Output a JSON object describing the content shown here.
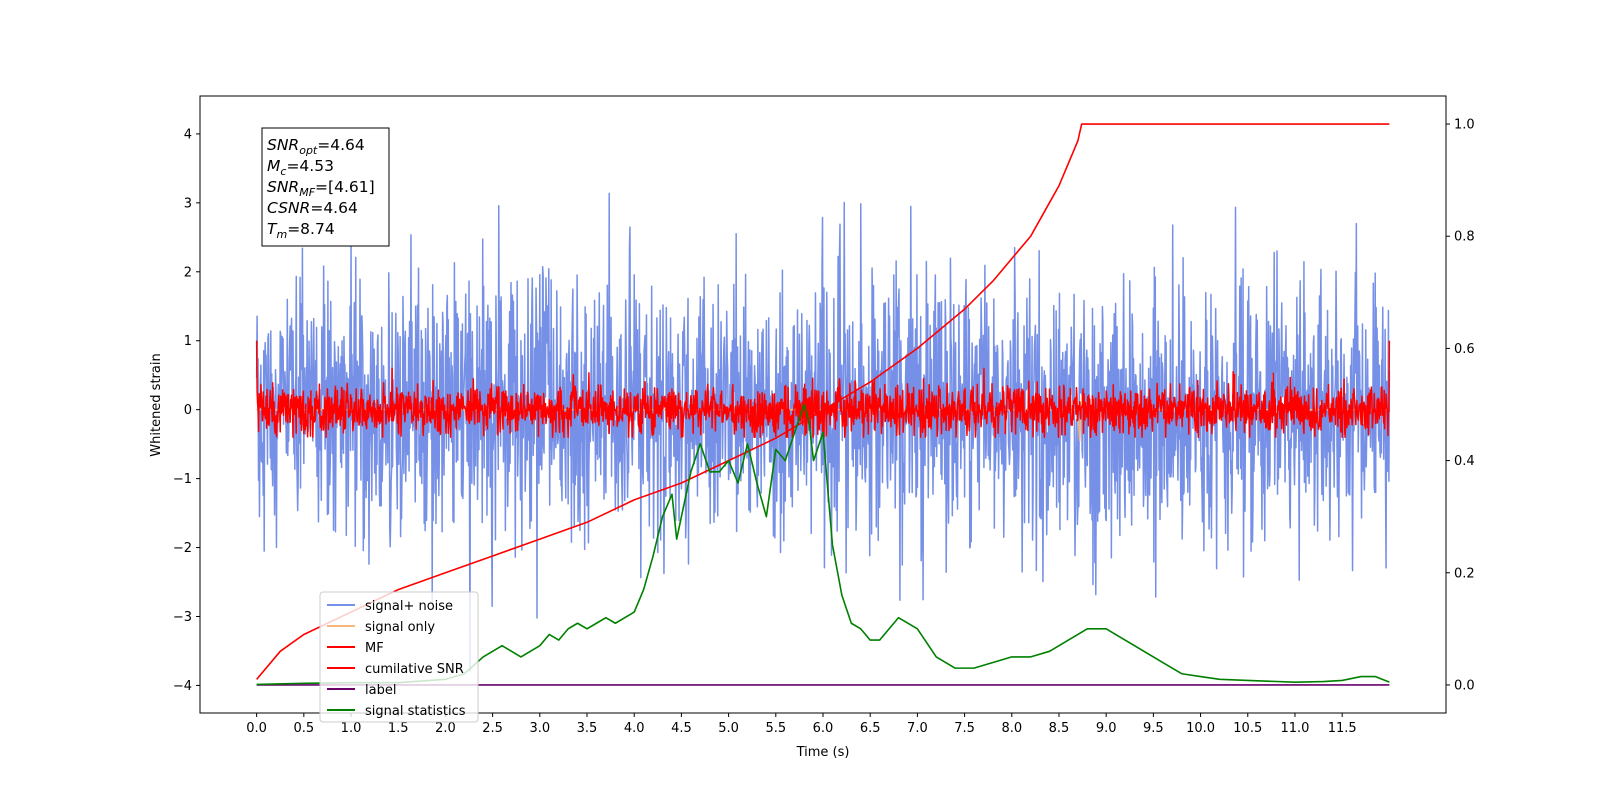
{
  "chart_data": {
    "type": "line",
    "title": "",
    "xlabel": "Time (s)",
    "ylabel": "Whitened strain",
    "y2label": "",
    "xlim": [
      -0.6,
      12.6
    ],
    "ylim": [
      -4.4,
      4.55
    ],
    "y2lim": [
      -0.05,
      1.05
    ],
    "x_ticks": [
      0.0,
      0.5,
      1.0,
      1.5,
      2.0,
      2.5,
      3.0,
      3.5,
      4.0,
      4.5,
      5.0,
      5.5,
      6.0,
      6.5,
      7.0,
      7.5,
      8.0,
      8.5,
      9.0,
      9.5,
      10.0,
      10.5,
      11.0,
      11.5
    ],
    "x_tick_labels": [
      "0.0",
      "0.5",
      "1.0",
      "1.5",
      "2.0",
      "2.5",
      "3.0",
      "3.5",
      "4.0",
      "4.5",
      "5.0",
      "5.5",
      "6.0",
      "6.5",
      "7.0",
      "7.5",
      "8.0",
      "8.5",
      "9.0",
      "9.5",
      "10.0",
      "10.5",
      "11.0",
      "11.5"
    ],
    "y_ticks": [
      -4,
      -3,
      -2,
      -1,
      0,
      1,
      2,
      3,
      4
    ],
    "y_tick_labels": [
      "−4",
      "−3",
      "−2",
      "−1",
      "0",
      "1",
      "2",
      "3",
      "4"
    ],
    "y2_ticks": [
      0.0,
      0.2,
      0.4,
      0.6,
      0.8,
      1.0
    ],
    "y2_tick_labels": [
      "0.0",
      "0.2",
      "0.4",
      "0.6",
      "0.8",
      "1.0"
    ],
    "grid": false,
    "legend_position": "lower-left",
    "noise": {
      "x_range": [
        0.0,
        12.0
      ],
      "signal_noise_sigma": 0.95,
      "signal_noise_range": [
        -4.0,
        4.2
      ],
      "mf_sigma": 0.18,
      "mf_range": [
        -0.4,
        1.0
      ]
    },
    "series": [
      {
        "name": "signal+ noise",
        "axis": "left",
        "color": "#7590e6",
        "kind": "noise"
      },
      {
        "name": "signal only",
        "axis": "left",
        "color": "#f5b87a",
        "x": [
          0.0,
          8.7,
          8.72,
          8.74,
          8.76,
          12.0
        ],
        "y": [
          0.0,
          0.0,
          -0.45,
          0.2,
          0.0,
          0.0
        ]
      },
      {
        "name": "MF",
        "axis": "left",
        "color": "#ff0000",
        "kind": "mf"
      },
      {
        "name": "cumilative SNR",
        "axis": "right",
        "color": "#ff0000",
        "x": [
          0.0,
          0.25,
          0.5,
          1.0,
          1.5,
          2.0,
          2.5,
          3.0,
          3.5,
          4.0,
          4.5,
          5.0,
          5.5,
          6.0,
          6.5,
          7.0,
          7.5,
          7.8,
          8.0,
          8.2,
          8.4,
          8.5,
          8.6,
          8.7,
          8.74,
          12.0
        ],
        "y": [
          0.01,
          0.06,
          0.09,
          0.13,
          0.17,
          0.2,
          0.23,
          0.26,
          0.29,
          0.33,
          0.36,
          0.4,
          0.44,
          0.49,
          0.54,
          0.6,
          0.67,
          0.72,
          0.76,
          0.8,
          0.86,
          0.89,
          0.93,
          0.97,
          1.0,
          1.0
        ]
      },
      {
        "name": "label",
        "axis": "right",
        "color": "#6b006b",
        "x": [
          0.0,
          12.0
        ],
        "y": [
          0.0,
          0.0
        ]
      },
      {
        "name": "signal statistics",
        "axis": "right",
        "color": "#008000",
        "x": [
          0.0,
          0.5,
          1.0,
          1.5,
          2.0,
          2.2,
          2.4,
          2.6,
          2.8,
          3.0,
          3.1,
          3.2,
          3.3,
          3.4,
          3.5,
          3.6,
          3.7,
          3.8,
          3.9,
          4.0,
          4.1,
          4.2,
          4.3,
          4.4,
          4.45,
          4.5,
          4.6,
          4.7,
          4.8,
          4.9,
          5.0,
          5.1,
          5.2,
          5.3,
          5.4,
          5.5,
          5.6,
          5.7,
          5.8,
          5.85,
          5.9,
          6.0,
          6.1,
          6.2,
          6.3,
          6.4,
          6.5,
          6.6,
          6.7,
          6.8,
          7.0,
          7.2,
          7.4,
          7.6,
          7.8,
          8.0,
          8.2,
          8.4,
          8.6,
          8.8,
          9.0,
          9.2,
          9.4,
          9.6,
          9.8,
          10.0,
          10.2,
          10.5,
          11.0,
          11.3,
          11.5,
          11.7,
          11.85,
          12.0
        ],
        "y": [
          0.001,
          0.003,
          0.004,
          0.004,
          0.01,
          0.02,
          0.05,
          0.07,
          0.05,
          0.07,
          0.09,
          0.08,
          0.1,
          0.11,
          0.1,
          0.11,
          0.12,
          0.11,
          0.12,
          0.13,
          0.17,
          0.23,
          0.3,
          0.34,
          0.26,
          0.3,
          0.38,
          0.43,
          0.38,
          0.38,
          0.4,
          0.36,
          0.43,
          0.36,
          0.3,
          0.42,
          0.4,
          0.45,
          0.5,
          0.47,
          0.4,
          0.45,
          0.25,
          0.16,
          0.11,
          0.1,
          0.08,
          0.08,
          0.1,
          0.12,
          0.1,
          0.05,
          0.03,
          0.03,
          0.04,
          0.05,
          0.05,
          0.06,
          0.08,
          0.1,
          0.1,
          0.08,
          0.06,
          0.04,
          0.02,
          0.015,
          0.01,
          0.008,
          0.005,
          0.006,
          0.008,
          0.015,
          0.015,
          0.005
        ]
      }
    ],
    "annotation": [
      {
        "base": "SNR",
        "sub": "opt",
        "text": "=4.64"
      },
      {
        "base": "M",
        "sub": "c",
        "text": "=4.53"
      },
      {
        "base": "SNR",
        "sub": "MF",
        "text": "=[4.61]"
      },
      {
        "base": "CSNR",
        "sub": "",
        "text": "=4.64"
      },
      {
        "base": "T",
        "sub": "m",
        "text": "=8.74"
      }
    ]
  }
}
